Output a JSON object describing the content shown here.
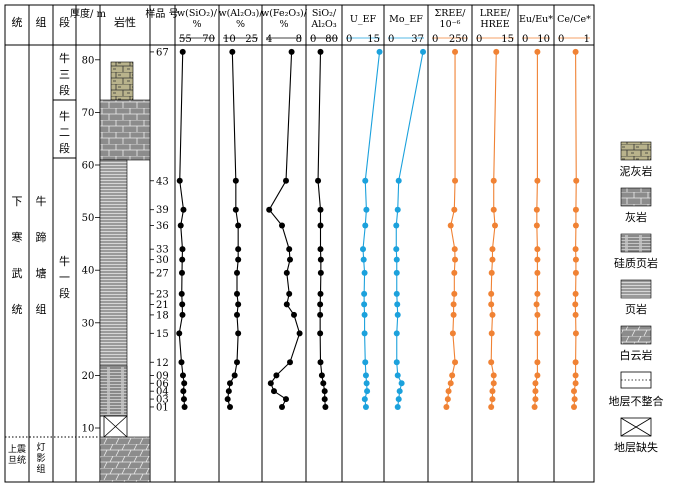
{
  "header": {
    "system": "统",
    "group": "组",
    "member": "段",
    "thickness": "厚度/ m",
    "lithology": "岩性",
    "sample_no": "样品 号",
    "col_sio2": "w(SiO₂)/ %",
    "col_al2o3": "w(Al₂O₃)/ %",
    "col_fe2o3": "w(Fe₂O₃)/ %",
    "col_ratio": "SiO₂/ Al₂O₃",
    "col_uef": "U_EF",
    "col_moef": "Mo_EF",
    "col_ree": "ΣREE/ 10⁻⁶",
    "col_lh": "LREE/ HREE",
    "col_eu": "Eu/Eu*",
    "col_ce": "Ce/Ce*"
  },
  "strat": {
    "system_lower": "下 寒 武 统",
    "group_niutitang": "牛 蹄 塘 组",
    "member_3": "牛 三 段",
    "member_2": "牛 二 段",
    "member_1": "牛 一 段",
    "system_upper": "上震 旦统",
    "group_dengying": "灯 影 组"
  },
  "legend": [
    {
      "label": "泥灰岩",
      "pattern": "marl"
    },
    {
      "label": "灰岩",
      "pattern": "limestone"
    },
    {
      "label": "硅质页岩",
      "pattern": "siliceous"
    },
    {
      "label": "页岩",
      "pattern": "shale"
    },
    {
      "label": "白云岩",
      "pattern": "dolomite"
    },
    {
      "label": "地层不整合",
      "pattern": "unconformity"
    },
    {
      "label": "地层缺失",
      "pattern": "missing"
    }
  ],
  "colors": {
    "black_series": "#000000",
    "blue_series": "#1ba1dc",
    "orange_series": "#f08234",
    "marl": "#b9b38c",
    "rock_gray": "#8c8c8c"
  },
  "chart_data": {
    "type": "line",
    "depth_axis": {
      "label": "厚度/m",
      "ticks": [
        10,
        20,
        30,
        40,
        50,
        60,
        70,
        80
      ]
    },
    "samples": [
      "01",
      "03",
      "04",
      "06",
      "09",
      "12",
      "15",
      "18",
      "21",
      "23",
      "27",
      "30",
      "33",
      "36",
      "39",
      "43",
      "67"
    ],
    "sample_depth_m": [
      14,
      15.5,
      17,
      18.5,
      20,
      22.5,
      28,
      31.5,
      33.5,
      35.5,
      39.5,
      42,
      44,
      48.5,
      51.5,
      57,
      81.5
    ],
    "series": [
      {
        "name": "w(SiO₂)/%",
        "color": "black",
        "tick_labels": [
          "55",
          "70"
        ],
        "range": [
          55,
          84
        ],
        "values": [
          59.5,
          59,
          58.5,
          59.2,
          58.2,
          57,
          55.2,
          57.8,
          57.6,
          57.2,
          57.4,
          57.6,
          57.8,
          56.4,
          58.6,
          55.6,
          58
        ]
      },
      {
        "name": "w(Al₂O₃)/%",
        "color": "black",
        "tick_labels": [
          "10",
          "25"
        ],
        "range": [
          10,
          25
        ],
        "values": [
          13,
          12,
          12.5,
          13,
          15,
          16,
          16.5,
          16,
          16.5,
          16,
          16,
          16.5,
          16.5,
          16.5,
          15.5,
          15.5,
          14
        ]
      },
      {
        "name": "w(Fe₂O₃)/%",
        "color": "black",
        "tick_labels": [
          "4",
          "8"
        ],
        "range": [
          4,
          8.5
        ],
        "values": [
          6,
          6.5,
          5,
          4.6,
          5.3,
          7,
          8.2,
          7.5,
          6.6,
          6.9,
          6.6,
          7,
          6.9,
          6,
          4.4,
          6.5,
          7.2
        ]
      },
      {
        "name": "SiO₂/Al₂O₃",
        "color": "black",
        "tick_labels": [
          "0",
          "80"
        ],
        "range": [
          0,
          80
        ],
        "values": [
          44,
          42,
          42,
          38,
          34,
          30,
          29,
          29,
          29,
          30,
          31,
          31,
          30,
          30,
          30,
          23,
          30
        ]
      },
      {
        "name": "U_EF",
        "color": "blue",
        "tick_labels": [
          "0",
          "15"
        ],
        "range": [
          0,
          15
        ],
        "values": [
          8.8,
          8.3,
          9.3,
          9.1,
          8.8,
          8.5,
          8.2,
          8.2,
          8,
          8,
          8.2,
          7.8,
          7.5,
          8.5,
          9,
          8.5,
          14.8
        ]
      },
      {
        "name": "Mo_EF",
        "color": "blue",
        "tick_labels": [
          "0",
          "37"
        ],
        "range": [
          0,
          37
        ],
        "values": [
          10,
          11,
          12,
          14,
          10,
          9,
          9,
          10,
          9.5,
          9,
          9,
          9,
          8.5,
          8.5,
          10,
          11,
          36
        ]
      },
      {
        "name": "ΣREE/10⁻⁶",
        "color": "orange",
        "tick_labels": [
          "0",
          "250"
        ],
        "range": [
          0,
          250
        ],
        "values": [
          100,
          110,
          115,
          130,
          140,
          160,
          145,
          150,
          150,
          155,
          155,
          160,
          158,
          130,
          155,
          160,
          160
        ]
      },
      {
        "name": "LREE/HREE",
        "color": "orange",
        "tick_labels": [
          "0",
          "15"
        ],
        "range": [
          0,
          15
        ],
        "values": [
          6,
          6.5,
          6.5,
          7,
          7,
          6,
          6.2,
          6.5,
          6,
          6,
          6.2,
          6.5,
          6.5,
          7.5,
          7,
          7,
          8
        ]
      },
      {
        "name": "Eu/Eu*",
        "color": "orange",
        "tick_labels": [
          "0",
          "10"
        ],
        "range": [
          0,
          10
        ],
        "values": [
          4.5,
          4.8,
          4.8,
          4.8,
          5.5,
          5.5,
          5.5,
          5.5,
          5.2,
          5.5,
          5.5,
          5.5,
          5.5,
          5.3,
          5.3,
          5.5,
          5.5
        ]
      },
      {
        "name": "Ce/Ce*",
        "color": "orange",
        "tick_labels": [
          "0",
          "1"
        ],
        "range": [
          0,
          1
        ],
        "values": [
          0.5,
          0.52,
          0.5,
          0.55,
          0.55,
          0.55,
          0.56,
          0.55,
          0.54,
          0.55,
          0.56,
          0.56,
          0.55,
          0.56,
          0.56,
          0.57,
          0.55
        ]
      }
    ]
  }
}
